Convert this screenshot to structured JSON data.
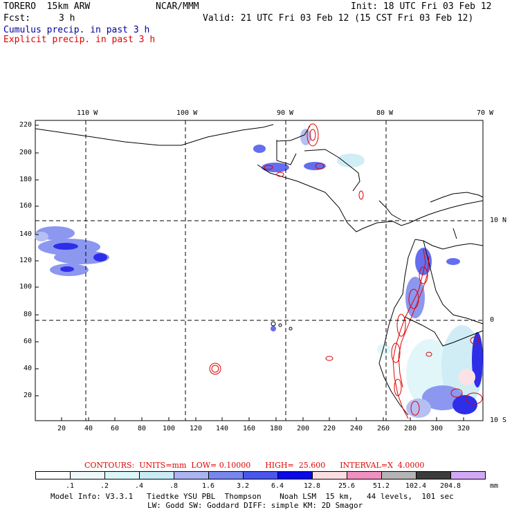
{
  "header": {
    "model": "TORERO  15km ARW",
    "org": "NCAR/MMM",
    "init": "Init: 18 UTC Fri 03 Feb 12",
    "fcst_label": "Fcst:",
    "fcst_value": "3 h",
    "valid": "Valid: 21 UTC Fri 03 Feb 12 (15 CST Fri 03 Feb 12)",
    "field_cumulus": "Cumulus precip. in past 3 h",
    "field_explicit": "Explicit precip. in past 3 h"
  },
  "map": {
    "lon_labels": [
      "110 W",
      "100 W",
      "90 W",
      "80 W",
      "70 W"
    ],
    "lat_labels": [
      "10 N",
      "0",
      "10 S"
    ],
    "x_ticks": [
      "20",
      "40",
      "60",
      "80",
      "100",
      "120",
      "140",
      "160",
      "180",
      "200",
      "220",
      "240",
      "260",
      "280",
      "300",
      "320"
    ],
    "y_ticks": [
      "220",
      "200",
      "180",
      "160",
      "140",
      "120",
      "100",
      "80",
      "60",
      "40",
      "20"
    ]
  },
  "legend": {
    "contours_label": "CONTOURS:  UNITS=mm  LOW= 0.10000      HIGH=  25.600      INTERVAL=X  4.0000",
    "thresholds": [
      ".1",
      ".2",
      ".4",
      ".8",
      "1.6",
      "3.2",
      "6.4",
      "12.8",
      "25.6",
      "51.2",
      "102.4",
      "204.8"
    ],
    "units": "mm",
    "colors": [
      "#ffffff",
      "#eef8fb",
      "#dcf5f8",
      "#c8ebf5",
      "#aab4f0",
      "#7886ee",
      "#4a55ec",
      "#0a0ae6",
      "#fcdde0",
      "#f090c0",
      "#b4b4b4",
      "#3c3c3c",
      "#d2a8f5"
    ]
  },
  "footer": {
    "line1": "Model Info: V3.3.1   Tiedtke YSU PBL  Thompson    Noah LSM  15 km,   44 levels,  101 sec",
    "line2": "LW: Godd SW: Goddard DIFF: simple KM: 2D Smagor"
  }
}
